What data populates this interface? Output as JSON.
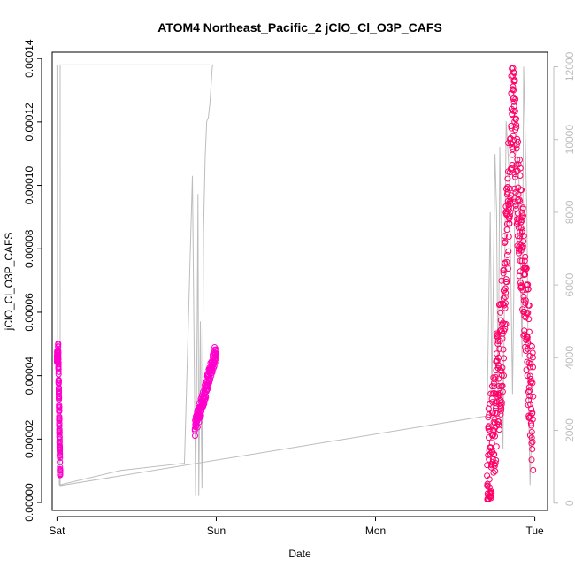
{
  "chart_data": {
    "type": "scatter",
    "title": "ATOM4 Northeast_Pacific_2 jClO_Cl_O3P_CAFS",
    "xlabel": "Date",
    "ylabel": "jClO_Cl_O3P_CAFS",
    "x_ticks": [
      "Sat",
      "Sun",
      "Mon",
      "Tue"
    ],
    "y_ticks": [
      "0.00000",
      "0.00002",
      "0.00004",
      "0.00006",
      "0.00008",
      "0.00010",
      "0.00012",
      "0.00014"
    ],
    "y_tick_values": [
      0,
      2e-05,
      4e-05,
      6e-05,
      8e-05,
      0.0001,
      0.00012,
      0.00014
    ],
    "ylim": [
      -2.5e-06,
      0.000142
    ],
    "y2_ticks": [
      "0",
      "2000",
      "4000",
      "6000",
      "8000",
      "10000",
      "12000"
    ],
    "y2_tick_values": [
      0,
      2000,
      4000,
      6000,
      8000,
      10000,
      12000
    ],
    "y2lim": [
      -200,
      12400
    ],
    "xlim_days": [
      -0.03,
      3.08
    ],
    "colors": {
      "points_early": "#ff00cc",
      "points_late": "#ff0066",
      "altitude_line": "#bdbdbd"
    },
    "series": [
      {
        "segments": [
          {
            "x_start": 0.0,
            "x_end": 0.02,
            "y_min": 8.5e-06,
            "y_max": 5e-05,
            "pattern": "sat_drop"
          },
          {
            "x_start": 0.865,
            "x_end": 1.0,
            "y_min": 1.8e-05,
            "y_max": 4.8e-05,
            "pattern": "sun_rise"
          },
          {
            "x_start": 2.7,
            "x_end": 2.99,
            "y_min": 1e-06,
            "y_max": 0.000139,
            "pattern": "tue_peak"
          }
        ]
      }
    ],
    "secondary_series": {
      "points": [
        [
          0.0,
          12050
        ],
        [
          0.005,
          3000
        ],
        [
          0.015,
          500
        ],
        [
          0.4,
          900
        ],
        [
          0.8,
          1100
        ],
        [
          0.85,
          9000
        ],
        [
          0.87,
          200
        ],
        [
          0.88,
          5000
        ],
        [
          0.885,
          8500
        ],
        [
          0.89,
          200
        ],
        [
          0.9,
          5000
        ],
        [
          0.91,
          400
        ],
        [
          0.92,
          7500
        ],
        [
          0.93,
          9500
        ],
        [
          0.94,
          10500
        ],
        [
          0.95,
          10600
        ],
        [
          0.96,
          11000
        ],
        [
          0.975,
          12000
        ],
        [
          0.98,
          12050
        ],
        [
          0.055,
          12050
        ],
        [
          0.02,
          12050
        ],
        [
          0.02,
          480
        ],
        [
          2.7,
          2400
        ],
        [
          2.72,
          8000
        ],
        [
          2.73,
          3000
        ],
        [
          2.75,
          9600
        ],
        [
          2.76,
          8000
        ],
        [
          2.77,
          2500
        ],
        [
          2.78,
          9800
        ],
        [
          2.79,
          7000
        ],
        [
          2.8,
          1500
        ],
        [
          2.82,
          10500
        ],
        [
          2.84,
          9000
        ],
        [
          2.86,
          3000
        ],
        [
          2.88,
          10000
        ],
        [
          2.9,
          9000
        ],
        [
          2.92,
          4000
        ],
        [
          2.93,
          12000
        ],
        [
          2.95,
          8000
        ],
        [
          2.96,
          3000
        ],
        [
          2.97,
          500
        ],
        [
          2.98,
          2000
        ],
        [
          2.99,
          1500
        ]
      ]
    }
  }
}
